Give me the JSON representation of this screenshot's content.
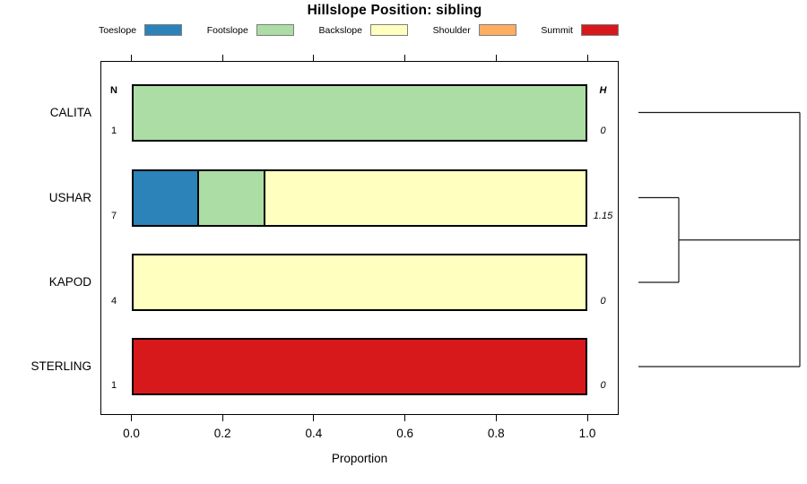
{
  "title": "Hillslope Position: sibling",
  "legend": {
    "items": [
      "Toeslope",
      "Footslope",
      "Backslope",
      "Shoulder",
      "Summit"
    ]
  },
  "chart_data": {
    "type": "bar",
    "subtype": "horizontal-stacked-proportion",
    "title": "Hillslope Position: sibling",
    "xlabel": "Proportion",
    "xlim": [
      0,
      1
    ],
    "x_ticks": [
      "0.0",
      "0.2",
      "0.4",
      "0.6",
      "0.8",
      "1.0"
    ],
    "x_tick_values": [
      0.0,
      0.2,
      0.4,
      0.6,
      0.8,
      1.0
    ],
    "grid": false,
    "legend_position": "top-horizontal",
    "categories": [
      "Toeslope",
      "Footslope",
      "Backslope",
      "Shoulder",
      "Summit"
    ],
    "colors": {
      "Toeslope": "#2B83BA",
      "Footslope": "#ABDDA4",
      "Backslope": "#FFFFBF",
      "Shoulder": "#FDAE61",
      "Summit": "#D7191C"
    },
    "columns": {
      "n_header": "N",
      "h_header": "H"
    },
    "rows": [
      {
        "site": "CALITA",
        "n": "1",
        "h": "0",
        "segments": [
          {
            "category": "Footslope",
            "value": 1.0
          }
        ]
      },
      {
        "site": "USHAR",
        "n": "7",
        "h": "1.15",
        "segments": [
          {
            "category": "Toeslope",
            "value": 0.143
          },
          {
            "category": "Footslope",
            "value": 0.143
          },
          {
            "category": "Backslope",
            "value": 0.714
          }
        ]
      },
      {
        "site": "KAPOD",
        "n": "4",
        "h": "0",
        "segments": [
          {
            "category": "Backslope",
            "value": 1.0
          }
        ]
      },
      {
        "site": "STERLING",
        "n": "1",
        "h": "0",
        "segments": [
          {
            "category": "Summit",
            "value": 1.0
          }
        ]
      }
    ],
    "dendrogram": {
      "leaves": [
        "CALITA",
        "USHAR",
        "KAPOD",
        "STERLING"
      ],
      "first_merge": {
        "members": [
          "USHAR",
          "KAPOD"
        ],
        "relative_height": 0.25
      },
      "root_merge": {
        "members": [
          "CALITA",
          "USHAR+KAPOD",
          "STERLING"
        ],
        "relative_height": 1.0
      },
      "segments": [
        {
          "r1": 0,
          "h1": 0,
          "r2": 0,
          "h2": 1
        },
        {
          "r1": 1,
          "h1": 0,
          "r2": 1,
          "h2": 0.25
        },
        {
          "r1": 2,
          "h1": 0,
          "r2": 2,
          "h2": 0.25
        },
        {
          "r1": 1,
          "h1": 0.25,
          "r2": 2,
          "h2": 0.25
        },
        {
          "r1": 1.5,
          "h1": 0.25,
          "r2": 1.5,
          "h2": 1
        },
        {
          "r1": 3,
          "h1": 0,
          "r2": 3,
          "h2": 1
        },
        {
          "r1": 0,
          "h1": 1,
          "r2": 3,
          "h2": 1
        }
      ]
    }
  }
}
